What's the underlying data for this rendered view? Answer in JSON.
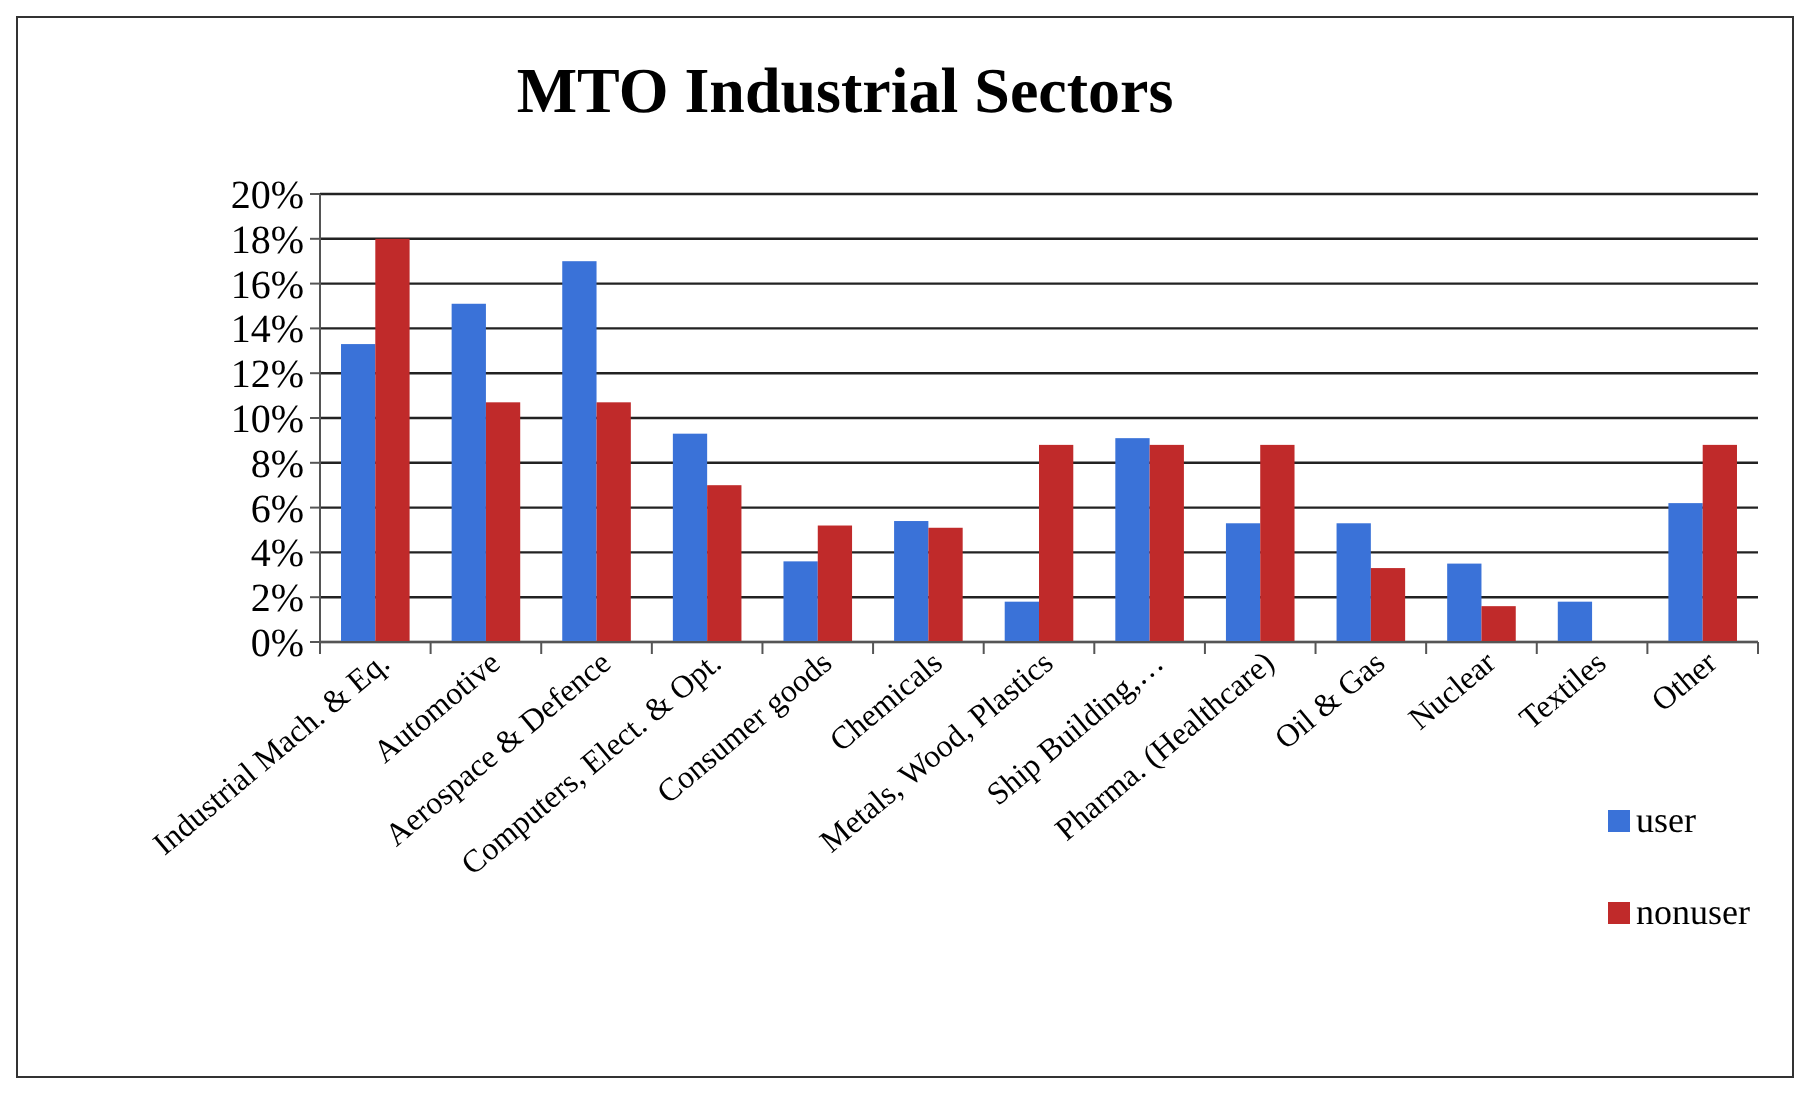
{
  "chart_data": {
    "type": "bar",
    "title": "MTO Industrial Sectors",
    "categories": [
      "Industrial Mach. & Eq.",
      "Automotive",
      "Aerospace & Defence",
      "Computers, Elect. & Opt.",
      "Consumer goods",
      "Chemicals",
      "Metals, Wood, Plastics",
      "Ship Building,…",
      "Pharma. (Healthcare)",
      "Oil & Gas",
      "Nuclear",
      "Textiles",
      "Other"
    ],
    "series": [
      {
        "name": "user",
        "color": "#3a72d8",
        "values": [
          13.3,
          15.1,
          17,
          9.3,
          3.6,
          5.4,
          1.8,
          9.1,
          5.3,
          5.3,
          3.5,
          1.8,
          6.2
        ]
      },
      {
        "name": "nonuser",
        "color": "#c02a2a",
        "values": [
          18,
          10.7,
          10.7,
          7,
          5.2,
          5.1,
          8.8,
          8.8,
          8.8,
          3.3,
          1.6,
          0,
          8.8
        ]
      }
    ],
    "ylim": [
      0,
      20
    ],
    "yticks": [
      {
        "value": 0,
        "label": "0%"
      },
      {
        "value": 2,
        "label": "2%"
      },
      {
        "value": 4,
        "label": "4%"
      },
      {
        "value": 6,
        "label": "6%"
      },
      {
        "value": 8,
        "label": "8%"
      },
      {
        "value": 10,
        "label": "10%"
      },
      {
        "value": 12,
        "label": "12%"
      },
      {
        "value": 14,
        "label": "14%"
      },
      {
        "value": 16,
        "label": "16%"
      },
      {
        "value": 18,
        "label": "18%"
      },
      {
        "value": 20,
        "label": "20%"
      }
    ],
    "grid": "y",
    "legend": "bottom right"
  }
}
